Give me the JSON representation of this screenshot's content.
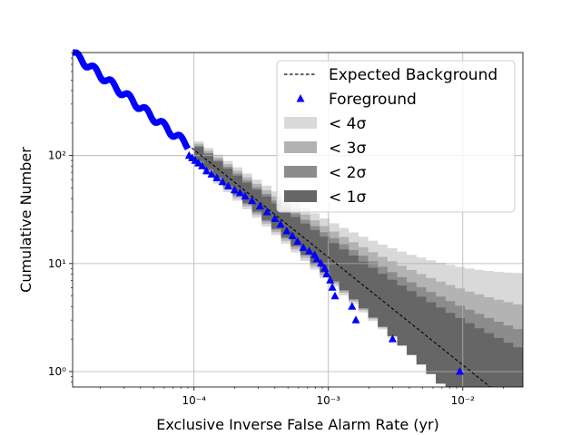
{
  "chart_data": {
    "type": "scatter",
    "title": "",
    "xlabel": "Exclusive Inverse False Alarm Rate (yr)",
    "ylabel": "Cumulative Number",
    "x_scale": "log",
    "y_scale": "log",
    "xlim": [
      1.25e-05,
      0.028
    ],
    "ylim": [
      0.72,
      900
    ],
    "grid": true,
    "x_ticks": [
      {
        "value": 0.0001,
        "label": "10⁻⁴"
      },
      {
        "value": 0.001,
        "label": "10⁻³"
      },
      {
        "value": 0.01,
        "label": "10⁻²"
      }
    ],
    "y_ticks": [
      {
        "value": 1,
        "label": "10⁰"
      },
      {
        "value": 10,
        "label": "10¹"
      },
      {
        "value": 100,
        "label": "10²"
      }
    ],
    "legend_position": "upper-right",
    "legend": [
      {
        "label": "Expected Background",
        "kind": "dashed-line",
        "color": "#000000"
      },
      {
        "label": "Foreground",
        "kind": "triangle-marker",
        "color": "#0000ff"
      },
      {
        "label": "< 4σ",
        "kind": "band",
        "color": "#d9d9d9"
      },
      {
        "label": "< 3σ",
        "kind": "band",
        "color": "#b3b3b3"
      },
      {
        "label": "< 2σ",
        "kind": "band",
        "color": "#8c8c8c"
      },
      {
        "label": "< 1σ",
        "kind": "band",
        "color": "#666666"
      }
    ],
    "expected_background": {
      "x": [
        1.25e-05,
        0.016
      ],
      "y": [
        900,
        0.7
      ]
    },
    "bands": {
      "x_range": [
        0.0001,
        0.028
      ],
      "upper": [
        [
          1.0,
          1.1
        ],
        [
          1.2,
          1.42
        ],
        [
          1.5,
          1.85
        ],
        [
          1.85,
          2.4
        ]
      ],
      "lower": [
        [
          1.0,
          0.9
        ],
        [
          1.2,
          0.7
        ],
        [
          1.5,
          0.55
        ],
        [
          1.85,
          0.4
        ]
      ],
      "names": [
        "< 1σ",
        "< 2σ",
        "< 3σ",
        "< 4σ"
      ]
    },
    "series": [
      {
        "name": "Foreground",
        "x": [
          9.2e-05,
          9.7e-05,
          0.000102,
          0.000108,
          0.000115,
          0.000124,
          0.000135,
          0.000148,
          0.000163,
          0.00018,
          0.0002,
          0.00022,
          0.00024,
          0.00027,
          0.00031,
          0.00035,
          0.0004,
          0.00044,
          0.00049,
          0.00054,
          0.00059,
          0.00065,
          0.00072,
          0.00079,
          0.00082,
          0.00088,
          0.00094,
          0.00097,
          0.00103,
          0.00107,
          0.00112,
          0.0015,
          0.0016,
          0.003,
          0.0095
        ],
        "y": [
          100,
          95,
          90,
          85,
          80,
          72,
          67,
          62,
          57,
          52,
          48,
          45,
          42,
          38,
          34,
          30,
          26,
          23,
          20,
          18,
          16,
          14,
          13,
          12,
          11,
          10,
          9,
          8,
          7,
          6,
          5,
          4,
          3,
          2,
          1
        ]
      }
    ]
  }
}
